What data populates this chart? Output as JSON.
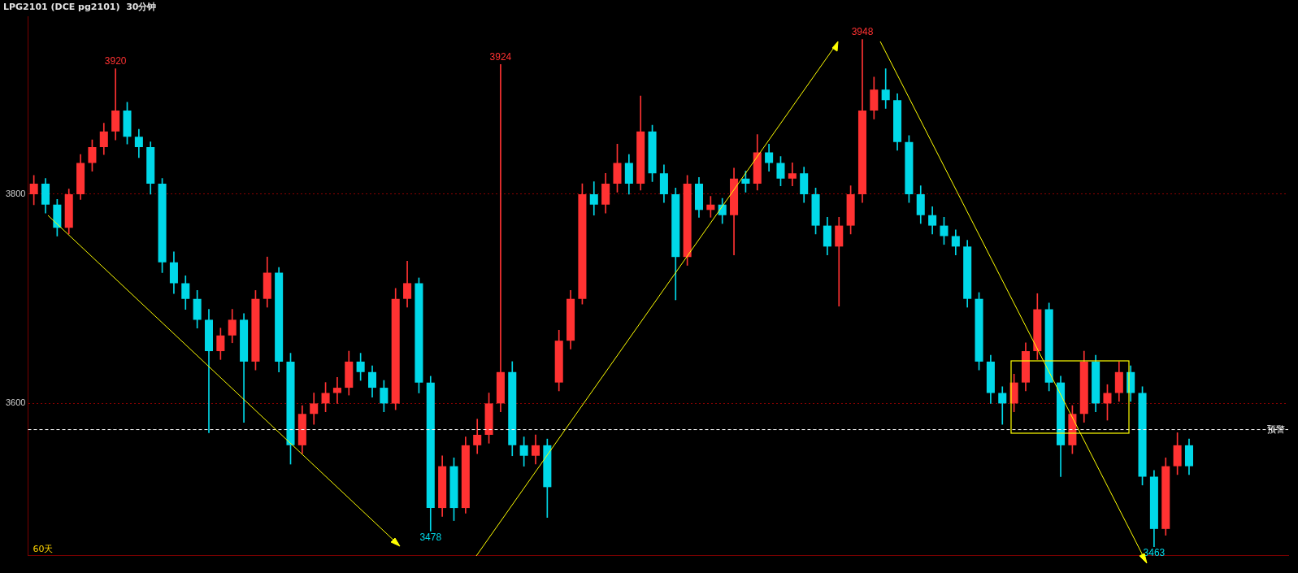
{
  "chart_data": {
    "type": "candlestick",
    "title": "LPG2101 (DCE pg2101)  30分钟",
    "categories": [
      null,
      null,
      null,
      null,
      null,
      null,
      null,
      null,
      null,
      null,
      null,
      null,
      null,
      null,
      null,
      null,
      null,
      null,
      null,
      null,
      null,
      null,
      null,
      null,
      null,
      null,
      null,
      null,
      null,
      null,
      null,
      null,
      null,
      null,
      null,
      null,
      null,
      null,
      null,
      null,
      null,
      null,
      null,
      null,
      null,
      null,
      null,
      null,
      null,
      null,
      null,
      null,
      null,
      null,
      null,
      null,
      null,
      null,
      null,
      null,
      null,
      null,
      null,
      null,
      null,
      null,
      null,
      null,
      null,
      null,
      null,
      null,
      null,
      null,
      null,
      null,
      null,
      null,
      null,
      null,
      null,
      null,
      null,
      null,
      null,
      null,
      null,
      null,
      null,
      null,
      null,
      null,
      null,
      null,
      null,
      null,
      null,
      null,
      null,
      null,
      null,
      null,
      null,
      null,
      null,
      null,
      null,
      null
    ],
    "ohlc": [
      [
        3800,
        3818,
        3790,
        3810
      ],
      [
        3810,
        3815,
        3782,
        3790
      ],
      [
        3790,
        3795,
        3760,
        3768
      ],
      [
        3768,
        3805,
        3762,
        3800
      ],
      [
        3800,
        3838,
        3795,
        3830
      ],
      [
        3830,
        3852,
        3822,
        3845
      ],
      [
        3845,
        3868,
        3838,
        3860
      ],
      [
        3860,
        3920,
        3852,
        3880
      ],
      [
        3880,
        3888,
        3848,
        3855
      ],
      [
        3855,
        3862,
        3835,
        3845
      ],
      [
        3845,
        3850,
        3800,
        3810
      ],
      [
        3810,
        3815,
        3725,
        3735
      ],
      [
        3735,
        3745,
        3705,
        3715
      ],
      [
        3715,
        3722,
        3690,
        3700
      ],
      [
        3700,
        3708,
        3672,
        3680
      ],
      [
        3680,
        3690,
        3572,
        3650
      ],
      [
        3650,
        3672,
        3642,
        3665
      ],
      [
        3665,
        3690,
        3658,
        3680
      ],
      [
        3680,
        3686,
        3582,
        3640
      ],
      [
        3640,
        3708,
        3632,
        3700
      ],
      [
        3700,
        3740,
        3692,
        3725
      ],
      [
        3725,
        3730,
        3630,
        3640
      ],
      [
        3640,
        3648,
        3542,
        3560
      ],
      [
        3560,
        3598,
        3552,
        3590
      ],
      [
        3590,
        3610,
        3580,
        3600
      ],
      [
        3600,
        3620,
        3592,
        3610
      ],
      [
        3610,
        3625,
        3600,
        3615
      ],
      [
        3615,
        3650,
        3608,
        3640
      ],
      [
        3640,
        3648,
        3622,
        3630
      ],
      [
        3630,
        3636,
        3606,
        3615
      ],
      [
        3615,
        3622,
        3592,
        3600
      ],
      [
        3600,
        3710,
        3594,
        3700
      ],
      [
        3700,
        3736,
        3692,
        3715
      ],
      [
        3715,
        3720,
        3610,
        3620
      ],
      [
        3620,
        3626,
        3478,
        3500
      ],
      [
        3500,
        3550,
        3492,
        3540
      ],
      [
        3540,
        3548,
        3488,
        3500
      ],
      [
        3500,
        3568,
        3495,
        3560
      ],
      [
        3560,
        3585,
        3552,
        3570
      ],
      [
        3570,
        3610,
        3562,
        3600
      ],
      [
        3600,
        3924,
        3592,
        3630
      ],
      [
        3630,
        3640,
        3550,
        3560
      ],
      [
        3560,
        3568,
        3540,
        3550
      ],
      [
        3550,
        3570,
        3542,
        3560
      ],
      [
        3560,
        3566,
        3491,
        3520
      ],
      [
        3620,
        3670,
        3612,
        3660
      ],
      [
        3660,
        3708,
        3652,
        3700
      ],
      [
        3700,
        3810,
        3695,
        3800
      ],
      [
        3800,
        3812,
        3780,
        3790
      ],
      [
        3790,
        3820,
        3782,
        3810
      ],
      [
        3810,
        3848,
        3802,
        3830
      ],
      [
        3830,
        3838,
        3800,
        3810
      ],
      [
        3810,
        3894,
        3804,
        3860
      ],
      [
        3860,
        3866,
        3812,
        3820
      ],
      [
        3820,
        3828,
        3792,
        3800
      ],
      [
        3800,
        3806,
        3699,
        3740
      ],
      [
        3740,
        3818,
        3732,
        3810
      ],
      [
        3810,
        3816,
        3778,
        3785
      ],
      [
        3785,
        3798,
        3778,
        3790
      ],
      [
        3790,
        3796,
        3772,
        3780
      ],
      [
        3780,
        3825,
        3742,
        3815
      ],
      [
        3815,
        3822,
        3802,
        3810
      ],
      [
        3810,
        3857,
        3804,
        3840
      ],
      [
        3840,
        3848,
        3822,
        3830
      ],
      [
        3830,
        3836,
        3808,
        3815
      ],
      [
        3815,
        3830,
        3808,
        3820
      ],
      [
        3820,
        3826,
        3792,
        3800
      ],
      [
        3800,
        3806,
        3762,
        3770
      ],
      [
        3770,
        3778,
        3742,
        3750
      ],
      [
        3750,
        3778,
        3693,
        3770
      ],
      [
        3770,
        3808,
        3762,
        3800
      ],
      [
        3800,
        3948,
        3792,
        3880
      ],
      [
        3880,
        3912,
        3872,
        3900
      ],
      [
        3900,
        3920,
        3882,
        3890
      ],
      [
        3890,
        3896,
        3842,
        3850
      ],
      [
        3850,
        3856,
        3792,
        3800
      ],
      [
        3800,
        3808,
        3772,
        3780
      ],
      [
        3780,
        3788,
        3762,
        3770
      ],
      [
        3770,
        3778,
        3752,
        3760
      ],
      [
        3760,
        3766,
        3742,
        3750
      ],
      [
        3750,
        3756,
        3692,
        3700
      ],
      [
        3700,
        3706,
        3632,
        3640
      ],
      [
        3640,
        3646,
        3600,
        3610
      ],
      [
        3610,
        3616,
        3580,
        3600
      ],
      [
        3600,
        3628,
        3592,
        3620
      ],
      [
        3620,
        3658,
        3612,
        3650
      ],
      [
        3650,
        3705,
        3642,
        3690
      ],
      [
        3690,
        3696,
        3612,
        3620
      ],
      [
        3620,
        3626,
        3530,
        3560
      ],
      [
        3560,
        3598,
        3552,
        3590
      ],
      [
        3590,
        3650,
        3582,
        3640
      ],
      [
        3640,
        3646,
        3592,
        3600
      ],
      [
        3600,
        3618,
        3584,
        3610
      ],
      [
        3610,
        3640,
        3602,
        3630
      ],
      [
        3630,
        3636,
        3602,
        3610
      ],
      [
        3610,
        3616,
        3522,
        3530
      ],
      [
        3530,
        3536,
        3463,
        3480
      ],
      [
        3480,
        3548,
        3474,
        3540
      ],
      [
        3540,
        3572,
        3532,
        3560
      ],
      [
        3560,
        3566,
        3532,
        3540
      ],
      null,
      null,
      null,
      null,
      null,
      null,
      null,
      null
    ],
    "colors": [
      "#ff3232",
      "#00d8e8",
      "#00d8e8",
      "#ff3232",
      "#ff3232",
      "#ff3232",
      "#ff3232",
      "#ff3232",
      "#00d8e8",
      "#00d8e8",
      "#00d8e8",
      "#00d8e8",
      "#00d8e8",
      "#00d8e8",
      "#00d8e8",
      "#00d8e8",
      "#ff3232",
      "#ff3232",
      "#00d8e8",
      "#ff3232",
      "#ff3232",
      "#00d8e8",
      "#00d8e8",
      "#ff3232",
      "#ff3232",
      "#ff3232",
      "#ff3232",
      "#ff3232",
      "#00d8e8",
      "#00d8e8",
      "#00d8e8",
      "#ff3232",
      "#ff3232",
      "#00d8e8",
      "#00d8e8",
      "#ff3232",
      "#00d8e8",
      "#ff3232",
      "#ff3232",
      "#ff3232",
      "#ff3232",
      "#00d8e8",
      "#00d8e8",
      "#ff3232",
      "#00d8e8",
      "#ff3232",
      "#ff3232",
      "#ff3232",
      "#00d8e8",
      "#ff3232",
      "#ff3232",
      "#00d8e8",
      "#ff3232",
      "#00d8e8",
      "#00d8e8",
      "#00d8e8",
      "#ff3232",
      "#00d8e8",
      "#ff3232",
      "#00d8e8",
      "#ff3232",
      "#00d8e8",
      "#ff3232",
      "#00d8e8",
      "#00d8e8",
      "#ff3232",
      "#00d8e8",
      "#00d8e8",
      "#00d8e8",
      "#ff3232",
      "#ff3232",
      "#ff3232",
      "#ff3232",
      "#00d8e8",
      "#00d8e8",
      "#00d8e8",
      "#00d8e8",
      "#00d8e8",
      "#00d8e8",
      "#00d8e8",
      "#00d8e8",
      "#00d8e8",
      "#00d8e8",
      "#00d8e8",
      "#ff3232",
      "#ff3232",
      "#ff3232",
      "#00d8e8",
      "#00d8e8",
      "#ff3232",
      "#ff3232",
      "#00d8e8",
      "#ff3232",
      "#ff3232",
      "#00d8e8",
      "#00d8e8",
      "#00d8e8",
      "#ff3232",
      "#ff3232",
      "#00d8e8",
      null,
      null,
      null,
      null,
      null,
      null,
      null,
      null
    ],
    "ylim": [
      3455,
      3970
    ],
    "yticks": [
      3600,
      3800
    ],
    "grid": "y",
    "legend": false,
    "tick_labels": "y",
    "ref_lines": [
      {
        "axis": "y",
        "value": 3575,
        "label": "预警",
        "color": "#ffffff",
        "line_style": "dashed"
      }
    ],
    "annotations": [
      {
        "text": "3920",
        "y": 3920
      },
      {
        "text": "3924",
        "y": 3924
      },
      {
        "text": "3948",
        "y": 3948
      },
      {
        "text": "3478",
        "y": 3478
      },
      {
        "text": "3463",
        "y": 3463
      },
      "60天"
    ]
  }
}
